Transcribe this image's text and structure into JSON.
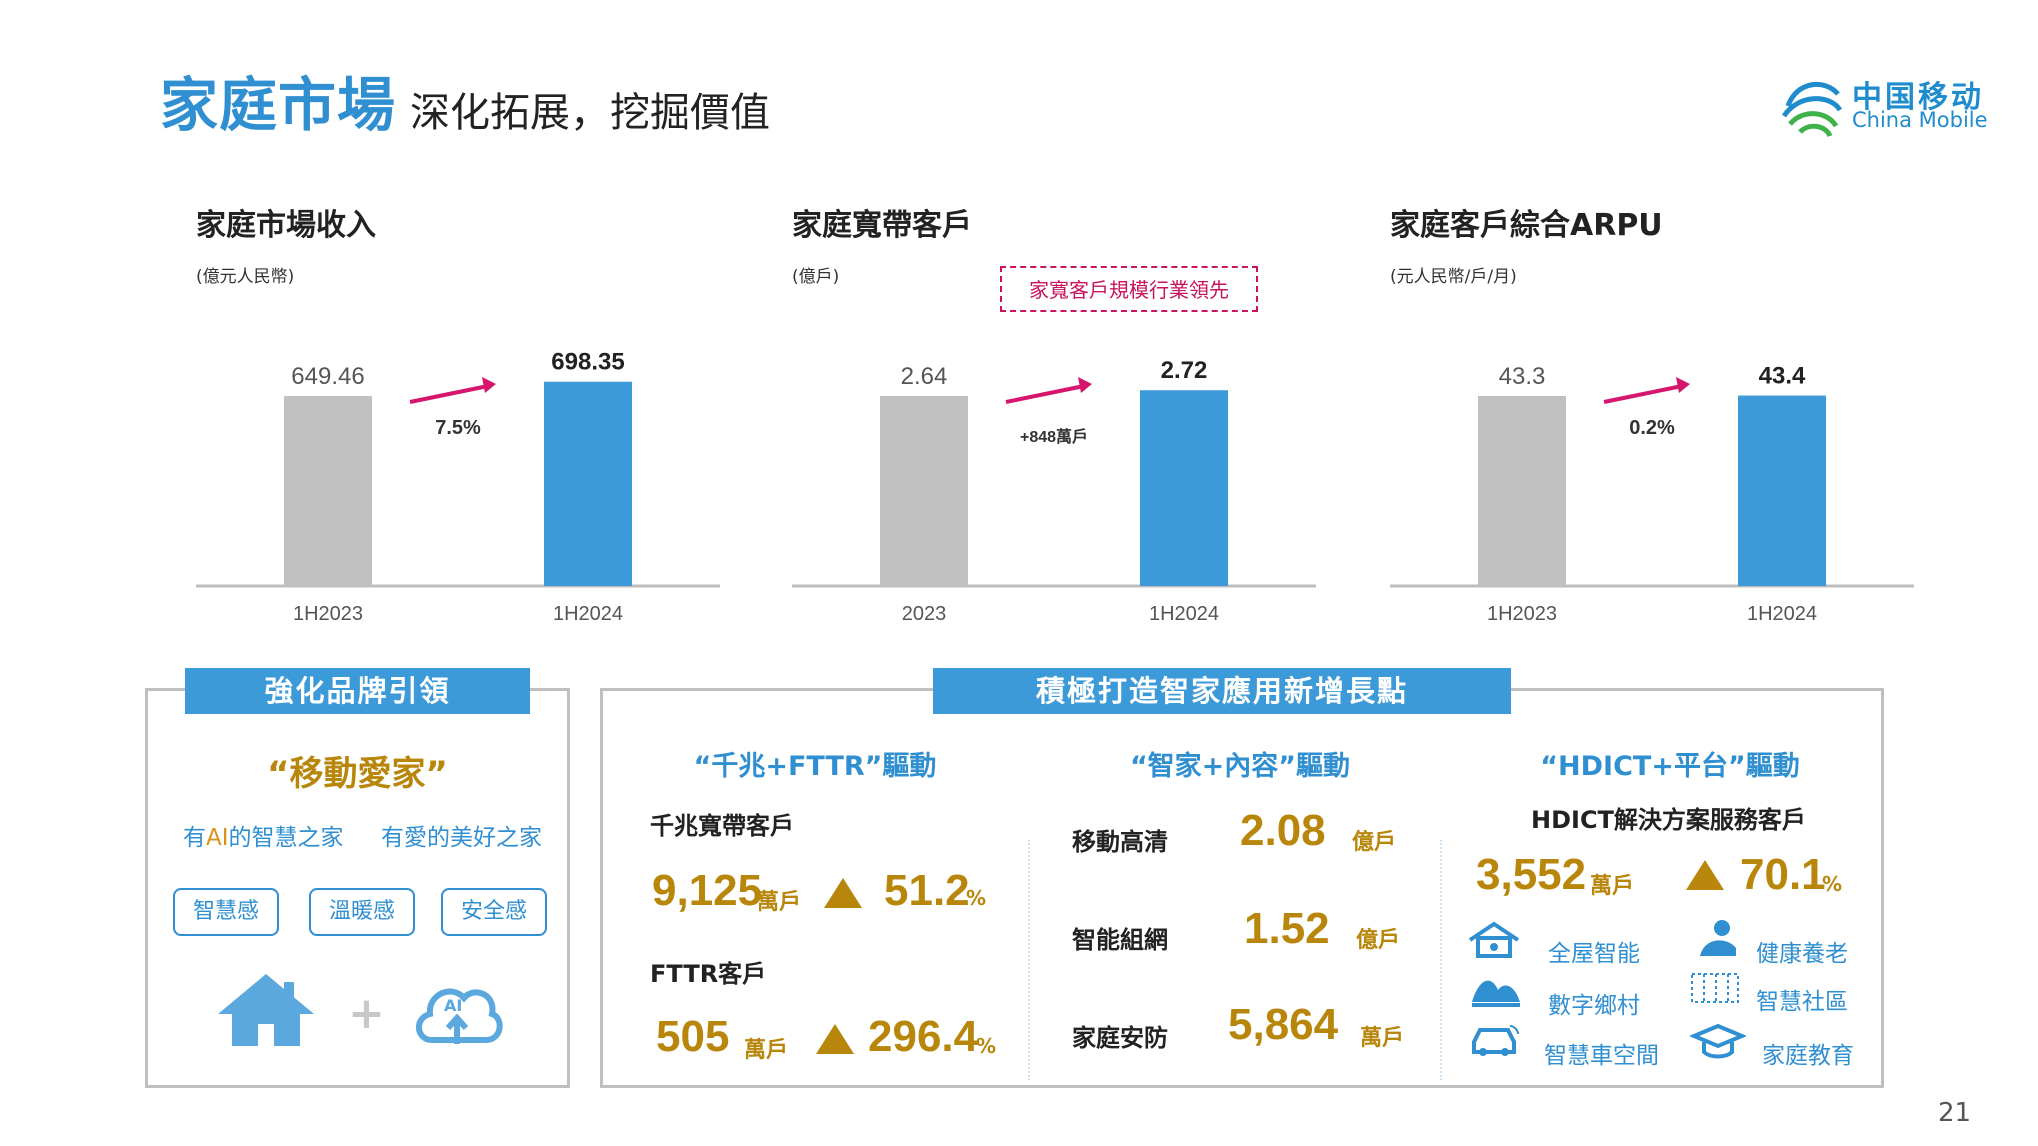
{
  "header": {
    "title": "家庭市場",
    "subtitle": "深化拓展，挖掘價值",
    "logo_cn": "中国移动",
    "logo_en": "China Mobile"
  },
  "colors": {
    "prev": "#c0c0c0",
    "curr": "#3d9ad8",
    "arrow": "#d6166d",
    "gold": "#b8860b",
    "accent": "#2f8fd1"
  },
  "chart_data": [
    {
      "type": "bar",
      "title": "家庭市場收入",
      "unit": "(億元人民幣)",
      "categories": [
        "1H2023",
        "1H2024"
      ],
      "values": [
        649.46,
        698.35
      ],
      "labels": [
        "649.46",
        "698.35"
      ],
      "growth_label": "7.5%"
    },
    {
      "type": "bar",
      "title": "家庭寬帶客戶",
      "unit": "(億戶)",
      "categories": [
        "2023",
        "1H2024"
      ],
      "values": [
        2.64,
        2.72
      ],
      "labels": [
        "2.64",
        "2.72"
      ],
      "growth_label": "+848萬戶",
      "callout": "家寬客戶規模行業領先"
    },
    {
      "type": "bar",
      "title": "家庭客戶綜合ARPU",
      "unit": "(元人民幣/戶/月)",
      "categories": [
        "1H2023",
        "1H2024"
      ],
      "values": [
        43.3,
        43.4
      ],
      "labels": [
        "43.3",
        "43.4"
      ],
      "growth_label": "0.2%"
    }
  ],
  "brand_panel": {
    "banner": "強化品牌引領",
    "slogan": "“移動愛家”",
    "tagline_left_pre": "有",
    "tagline_left_ai": "AI",
    "tagline_left_post": "的智慧之家",
    "tagline_right": "有愛的美好之家",
    "pills": [
      "智慧感",
      "溫暖感",
      "安全感"
    ],
    "home_icon": "house-icon",
    "plus": "+",
    "cloud_icon": "ai-cloud-icon",
    "cloud_text": "AI"
  },
  "smart_panel": {
    "banner": "積極打造智家應用新增長點",
    "gigabit": {
      "title": "“千兆+FTTR”驅動",
      "row1_label": "千兆寬帶客戶",
      "row1_value": "9,125",
      "row1_unit": "萬戶",
      "row1_growth": "51.2",
      "row2_label": "FTTR客戶",
      "row2_value": "505",
      "row2_unit": "萬戶",
      "row2_growth": "296.4",
      "pct": "%"
    },
    "content": {
      "title": "“智家+內容”驅動",
      "items": [
        {
          "label": "移動高清",
          "value": "2.08",
          "unit": "億戶"
        },
        {
          "label": "智能組網",
          "value": "1.52",
          "unit": "億戶"
        },
        {
          "label": "家庭安防",
          "value": "5,864",
          "unit": "萬戶"
        }
      ]
    },
    "hdict": {
      "title": "“HDICT+平台”驅動",
      "subtitle": "HDICT解決方案服務客戶",
      "value": "3,552",
      "unit": "萬戶",
      "growth": "70.1",
      "pct": "%",
      "apps": [
        {
          "label": "全屋智能",
          "icon": "smart-home-icon"
        },
        {
          "label": "健康養老",
          "icon": "elderly-care-icon"
        },
        {
          "label": "數字鄉村",
          "icon": "village-icon"
        },
        {
          "label": "智慧社區",
          "icon": "community-icon"
        },
        {
          "label": "智慧車空間",
          "icon": "car-icon"
        },
        {
          "label": "家庭教育",
          "icon": "graduation-cap-icon"
        }
      ]
    }
  },
  "footer": {
    "page": "21"
  }
}
